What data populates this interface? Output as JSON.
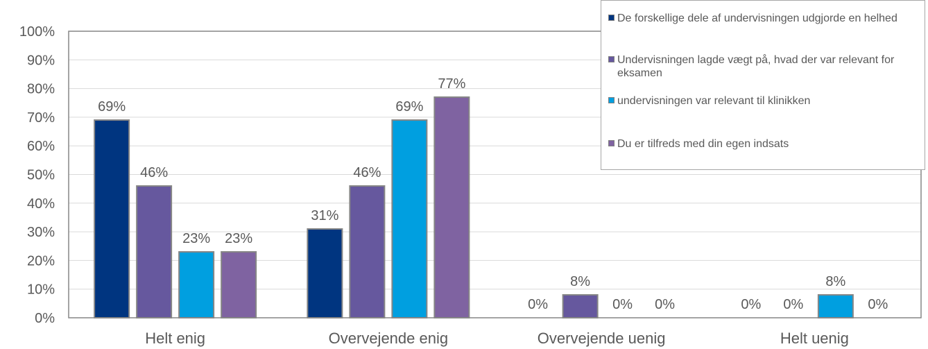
{
  "chart_data": {
    "type": "bar",
    "categories": [
      "Helt enig",
      "Overvejende enig",
      "Overvejende uenig",
      "Helt uenig"
    ],
    "ylim": [
      0,
      100
    ],
    "yticks": [
      "0%",
      "10%",
      "20%",
      "30%",
      "40%",
      "50%",
      "60%",
      "70%",
      "80%",
      "90%",
      "100%"
    ],
    "grid": true,
    "legend_position": "top-right",
    "series": [
      {
        "name": "De forskellige dele af undervisningen udgjorde en helhed",
        "color": "#003580",
        "values": [
          69,
          31,
          0,
          0
        ],
        "labels": [
          "69%",
          "31%",
          "0%",
          "0%"
        ]
      },
      {
        "name": "Undervisningen lagde vægt på, hvad der var relevant for eksamen",
        "color": "#66589e",
        "values": [
          46,
          46,
          8,
          0
        ],
        "labels": [
          "46%",
          "46%",
          "8%",
          "0%"
        ]
      },
      {
        "name": "undervisningen var relevant til klinikken",
        "color": "#009fe0",
        "values": [
          23,
          69,
          0,
          8
        ],
        "labels": [
          "23%",
          "69%",
          "0%",
          "8%"
        ]
      },
      {
        "name": "Du er tilfreds med din egen indsats",
        "color": "#7f63a1",
        "values": [
          23,
          77,
          0,
          0
        ],
        "labels": [
          "23%",
          "77%",
          "0%",
          "0%"
        ]
      }
    ]
  }
}
